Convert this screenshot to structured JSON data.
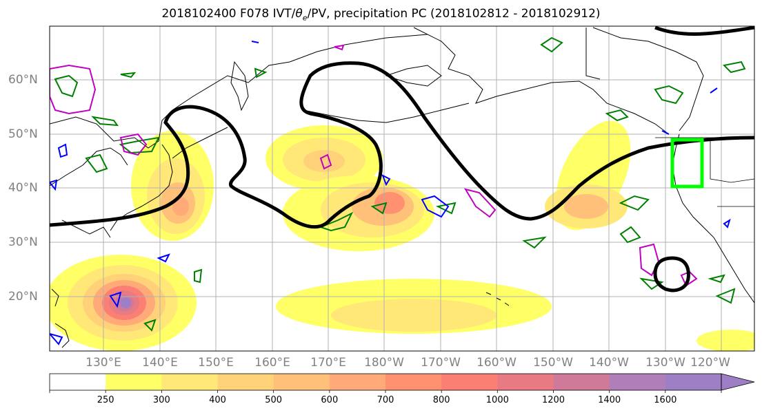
{
  "title": {
    "prefix": "2018102400 F078 IVT/",
    "theta": "θ",
    "sub": "e",
    "suffix": "/PV, precipitation PC (2018102812 - 2018102912)"
  },
  "lat_labels": [
    "60°N",
    "50°N",
    "40°N",
    "30°N",
    "20°N"
  ],
  "lon_labels": [
    "130°E",
    "140°E",
    "150°E",
    "160°E",
    "170°E",
    "180°W",
    "170°W",
    "160°W",
    "150°W",
    "140°W",
    "130°W",
    "120°W"
  ],
  "colorbar": {
    "levels": [
      "250",
      "300",
      "400",
      "500",
      "600",
      "700",
      "800",
      "1000",
      "1200",
      "1400",
      "1600"
    ],
    "colors": [
      "#ffff66",
      "#ffe878",
      "#ffd27a",
      "#ffc07a",
      "#ffaa78",
      "#ff9070",
      "#fb7f72",
      "#e87a84",
      "#cf7a98",
      "#b07fba",
      "#9e7fc6"
    ]
  },
  "legend_colors": {
    "ivt_contour": "#000000",
    "theta_e": "#008000",
    "pv": "#0000ff",
    "magenta_contour": "#c000c0",
    "target_box": "#00ff00"
  }
}
